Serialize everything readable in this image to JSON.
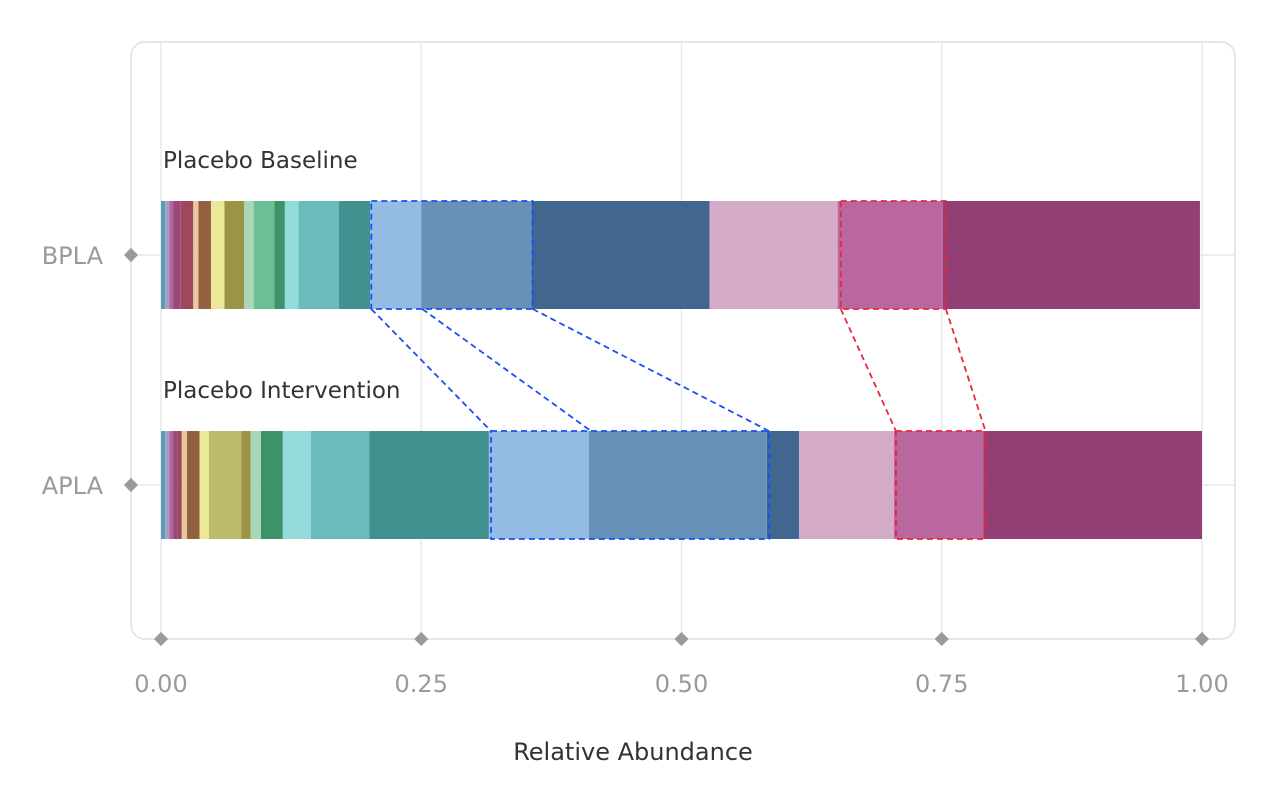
{
  "chart_data": {
    "type": "bar",
    "orientation": "horizontal",
    "stacked": true,
    "xlabel": "Relative Abundance",
    "xlim": [
      0,
      1
    ],
    "x_ticks": [
      "0.00",
      "0.25",
      "0.50",
      "0.75",
      "1.00"
    ],
    "grid": true,
    "categories": [
      "BPLA",
      "APLA"
    ],
    "bar_titles": [
      "Placebo Baseline",
      "Placebo Intervention"
    ],
    "bars": [
      {
        "category": "BPLA",
        "segments": [
          {
            "value": 0.004,
            "color": "#5a9db5"
          },
          {
            "value": 0.004,
            "color": "#a0a0c8"
          },
          {
            "value": 0.004,
            "color": "#b8629c"
          },
          {
            "value": 0.007,
            "color": "#9a4a7a"
          },
          {
            "value": 0.012,
            "color": "#a0485a"
          },
          {
            "value": 0.005,
            "color": "#e8c8a0"
          },
          {
            "value": 0.012,
            "color": "#936040"
          },
          {
            "value": 0.013,
            "color": "#ece89a"
          },
          {
            "value": 0.019,
            "color": "#9a9444"
          },
          {
            "value": 0.009,
            "color": "#a8d8b8"
          },
          {
            "value": 0.02,
            "color": "#6cbf94"
          },
          {
            "value": 0.01,
            "color": "#3d9268"
          },
          {
            "value": 0.013,
            "color": "#94dcdc"
          },
          {
            "value": 0.039,
            "color": "#6abcbc"
          },
          {
            "value": 0.03,
            "color": "#419191"
          },
          {
            "value": 0.049,
            "color": "#94bbe3"
          },
          {
            "value": 0.106,
            "color": "#6791b9"
          },
          {
            "value": 0.171,
            "color": "#416791"
          },
          {
            "value": 0.123,
            "color": "#d4acca"
          },
          {
            "value": 0.101,
            "color": "#b9679e"
          },
          {
            "value": 0.247,
            "color": "#913f74"
          }
        ]
      },
      {
        "category": "APLA",
        "segments": [
          {
            "value": 0.004,
            "color": "#5a9db5"
          },
          {
            "value": 0.004,
            "color": "#a0a0c8"
          },
          {
            "value": 0.004,
            "color": "#b8629c"
          },
          {
            "value": 0.004,
            "color": "#9a4a7a"
          },
          {
            "value": 0.004,
            "color": "#a0485a"
          },
          {
            "value": 0.005,
            "color": "#e8c8a0"
          },
          {
            "value": 0.012,
            "color": "#936040"
          },
          {
            "value": 0.009,
            "color": "#ece89a"
          },
          {
            "value": 0.031,
            "color": "#bdbb6a"
          },
          {
            "value": 0.009,
            "color": "#9a9444"
          },
          {
            "value": 0.01,
            "color": "#a8d8b8"
          },
          {
            "value": 0.021,
            "color": "#3d9268"
          },
          {
            "value": 0.027,
            "color": "#94dcdc"
          },
          {
            "value": 0.056,
            "color": "#6abcbc"
          },
          {
            "value": 0.115,
            "color": "#419191"
          },
          {
            "value": 0.096,
            "color": "#94bbe3"
          },
          {
            "value": 0.171,
            "color": "#6791b9"
          },
          {
            "value": 0.031,
            "color": "#416791"
          },
          {
            "value": 0.091,
            "color": "#d4acca"
          },
          {
            "value": 0.086,
            "color": "#b9679e"
          },
          {
            "value": 0.21,
            "color": "#913f74"
          }
        ]
      }
    ],
    "highlights": [
      {
        "color": "#1a4ff0",
        "from": [
          0.202,
          0.357
        ],
        "to": [
          0.317,
          0.584
        ],
        "dividers": [
          [
            0.251,
            0.413
          ]
        ]
      },
      {
        "color": "#e8283c",
        "from": [
          0.653,
          0.754
        ],
        "to": [
          0.706,
          0.792
        ],
        "dividers": []
      }
    ]
  }
}
